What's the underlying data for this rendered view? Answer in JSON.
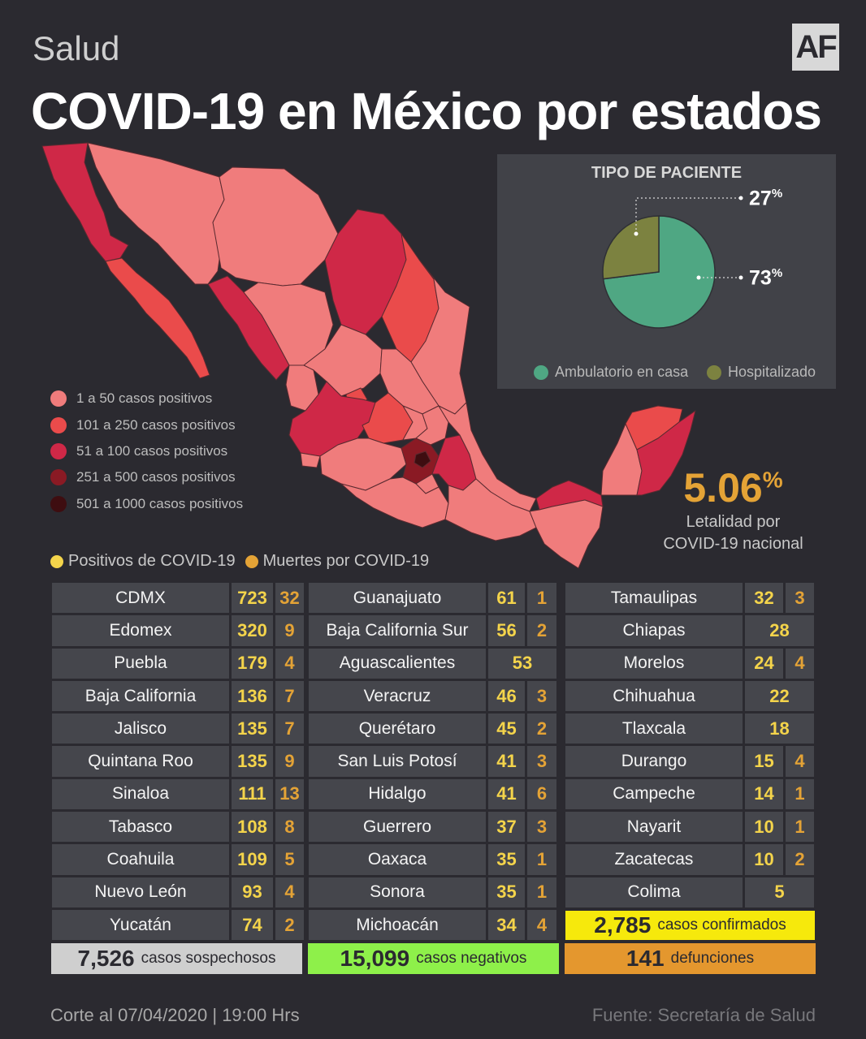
{
  "header": {
    "section": "Salud",
    "logo": "AF",
    "title": "COVID-19 en México por estados"
  },
  "pie": {
    "title": "TIPO DE PACIENTE",
    "slices": [
      {
        "label": "Ambulatorio en casa",
        "value": 73,
        "display": "73",
        "color": "#4fa783"
      },
      {
        "label": "Hospitalizado",
        "value": 27,
        "display": "27",
        "color": "#7c8240"
      }
    ],
    "pct_symbol": "%"
  },
  "map_legend": [
    {
      "label": "1 a 50 casos positivos",
      "color": "#f07c7c"
    },
    {
      "label": "101 a 250 casos positivos",
      "color": "#ea4b4b"
    },
    {
      "label": "51 a 100 casos positivos",
      "color": "#cf2847"
    },
    {
      "label": "251 a 500 casos positivos",
      "color": "#8a1a24"
    },
    {
      "label": "501 a 1000 casos positivos",
      "color": "#3e0d10"
    }
  ],
  "lethality": {
    "value": "5.06",
    "symbol": "%",
    "label_line1": "Letalidad por",
    "label_line2": "COVID-19 nacional"
  },
  "bar_legend": {
    "positive": {
      "label": "Positivos de COVID-19",
      "color": "#f4d44b"
    },
    "deaths": {
      "label": "Muertes por COVID-19",
      "color": "#e4a336"
    }
  },
  "columns": [
    [
      {
        "state": "CDMX",
        "pos": "723",
        "dead": "32"
      },
      {
        "state": "Edomex",
        "pos": "320",
        "dead": "9"
      },
      {
        "state": "Puebla",
        "pos": "179",
        "dead": "4"
      },
      {
        "state": "Baja California",
        "pos": "136",
        "dead": "7"
      },
      {
        "state": "Jalisco",
        "pos": "135",
        "dead": "7"
      },
      {
        "state": "Quintana Roo",
        "pos": "135",
        "dead": "9"
      },
      {
        "state": "Sinaloa",
        "pos": "111",
        "dead": "13"
      },
      {
        "state": "Tabasco",
        "pos": "108",
        "dead": "8"
      },
      {
        "state": "Coahuila",
        "pos": "109",
        "dead": "5"
      },
      {
        "state": "Nuevo León",
        "pos": "93",
        "dead": "4"
      },
      {
        "state": "Yucatán",
        "pos": "74",
        "dead": "2"
      }
    ],
    [
      {
        "state": "Guanajuato",
        "pos": "61",
        "dead": "1"
      },
      {
        "state": "Baja California Sur",
        "pos": "56",
        "dead": "2"
      },
      {
        "state": "Aguascalientes",
        "pos": "53",
        "dead": ""
      },
      {
        "state": "Veracruz",
        "pos": "46",
        "dead": "3"
      },
      {
        "state": "Querétaro",
        "pos": "45",
        "dead": "2"
      },
      {
        "state": "San Luis Potosí",
        "pos": "41",
        "dead": "3"
      },
      {
        "state": "Hidalgo",
        "pos": "41",
        "dead": "6"
      },
      {
        "state": "Guerrero",
        "pos": "37",
        "dead": "3"
      },
      {
        "state": "Oaxaca",
        "pos": "35",
        "dead": "1"
      },
      {
        "state": "Sonora",
        "pos": "35",
        "dead": "1"
      },
      {
        "state": "Michoacán",
        "pos": "34",
        "dead": "4"
      }
    ],
    [
      {
        "state": "Tamaulipas",
        "pos": "32",
        "dead": "3"
      },
      {
        "state": "Chiapas",
        "pos": "28",
        "dead": ""
      },
      {
        "state": "Morelos",
        "pos": "24",
        "dead": "4"
      },
      {
        "state": "Chihuahua",
        "pos": "22",
        "dead": ""
      },
      {
        "state": "Tlaxcala",
        "pos": "18",
        "dead": ""
      },
      {
        "state": "Durango",
        "pos": "15",
        "dead": "4"
      },
      {
        "state": "Campeche",
        "pos": "14",
        "dead": "1"
      },
      {
        "state": "Nayarit",
        "pos": "10",
        "dead": "1"
      },
      {
        "state": "Zacatecas",
        "pos": "10",
        "dead": "2"
      },
      {
        "state": "Colima",
        "pos": "5",
        "dead": ""
      }
    ]
  ],
  "totals": {
    "confirmed": {
      "num": "2,785",
      "label": "casos confirmados",
      "color": "#f6e90c"
    },
    "suspected": {
      "num": "7,526",
      "label": "casos sospechosos",
      "color": "#cfcfcf"
    },
    "negative": {
      "num": "15,099",
      "label": "casos negativos",
      "color": "#8ef04a"
    },
    "deaths": {
      "num": "141",
      "label": "defunciones",
      "color": "#e4972e"
    }
  },
  "footer": {
    "cutoff": "Corte al 07/04/2020 | 19:00 Hrs",
    "source": "Fuente: Secretaría de Salud"
  }
}
